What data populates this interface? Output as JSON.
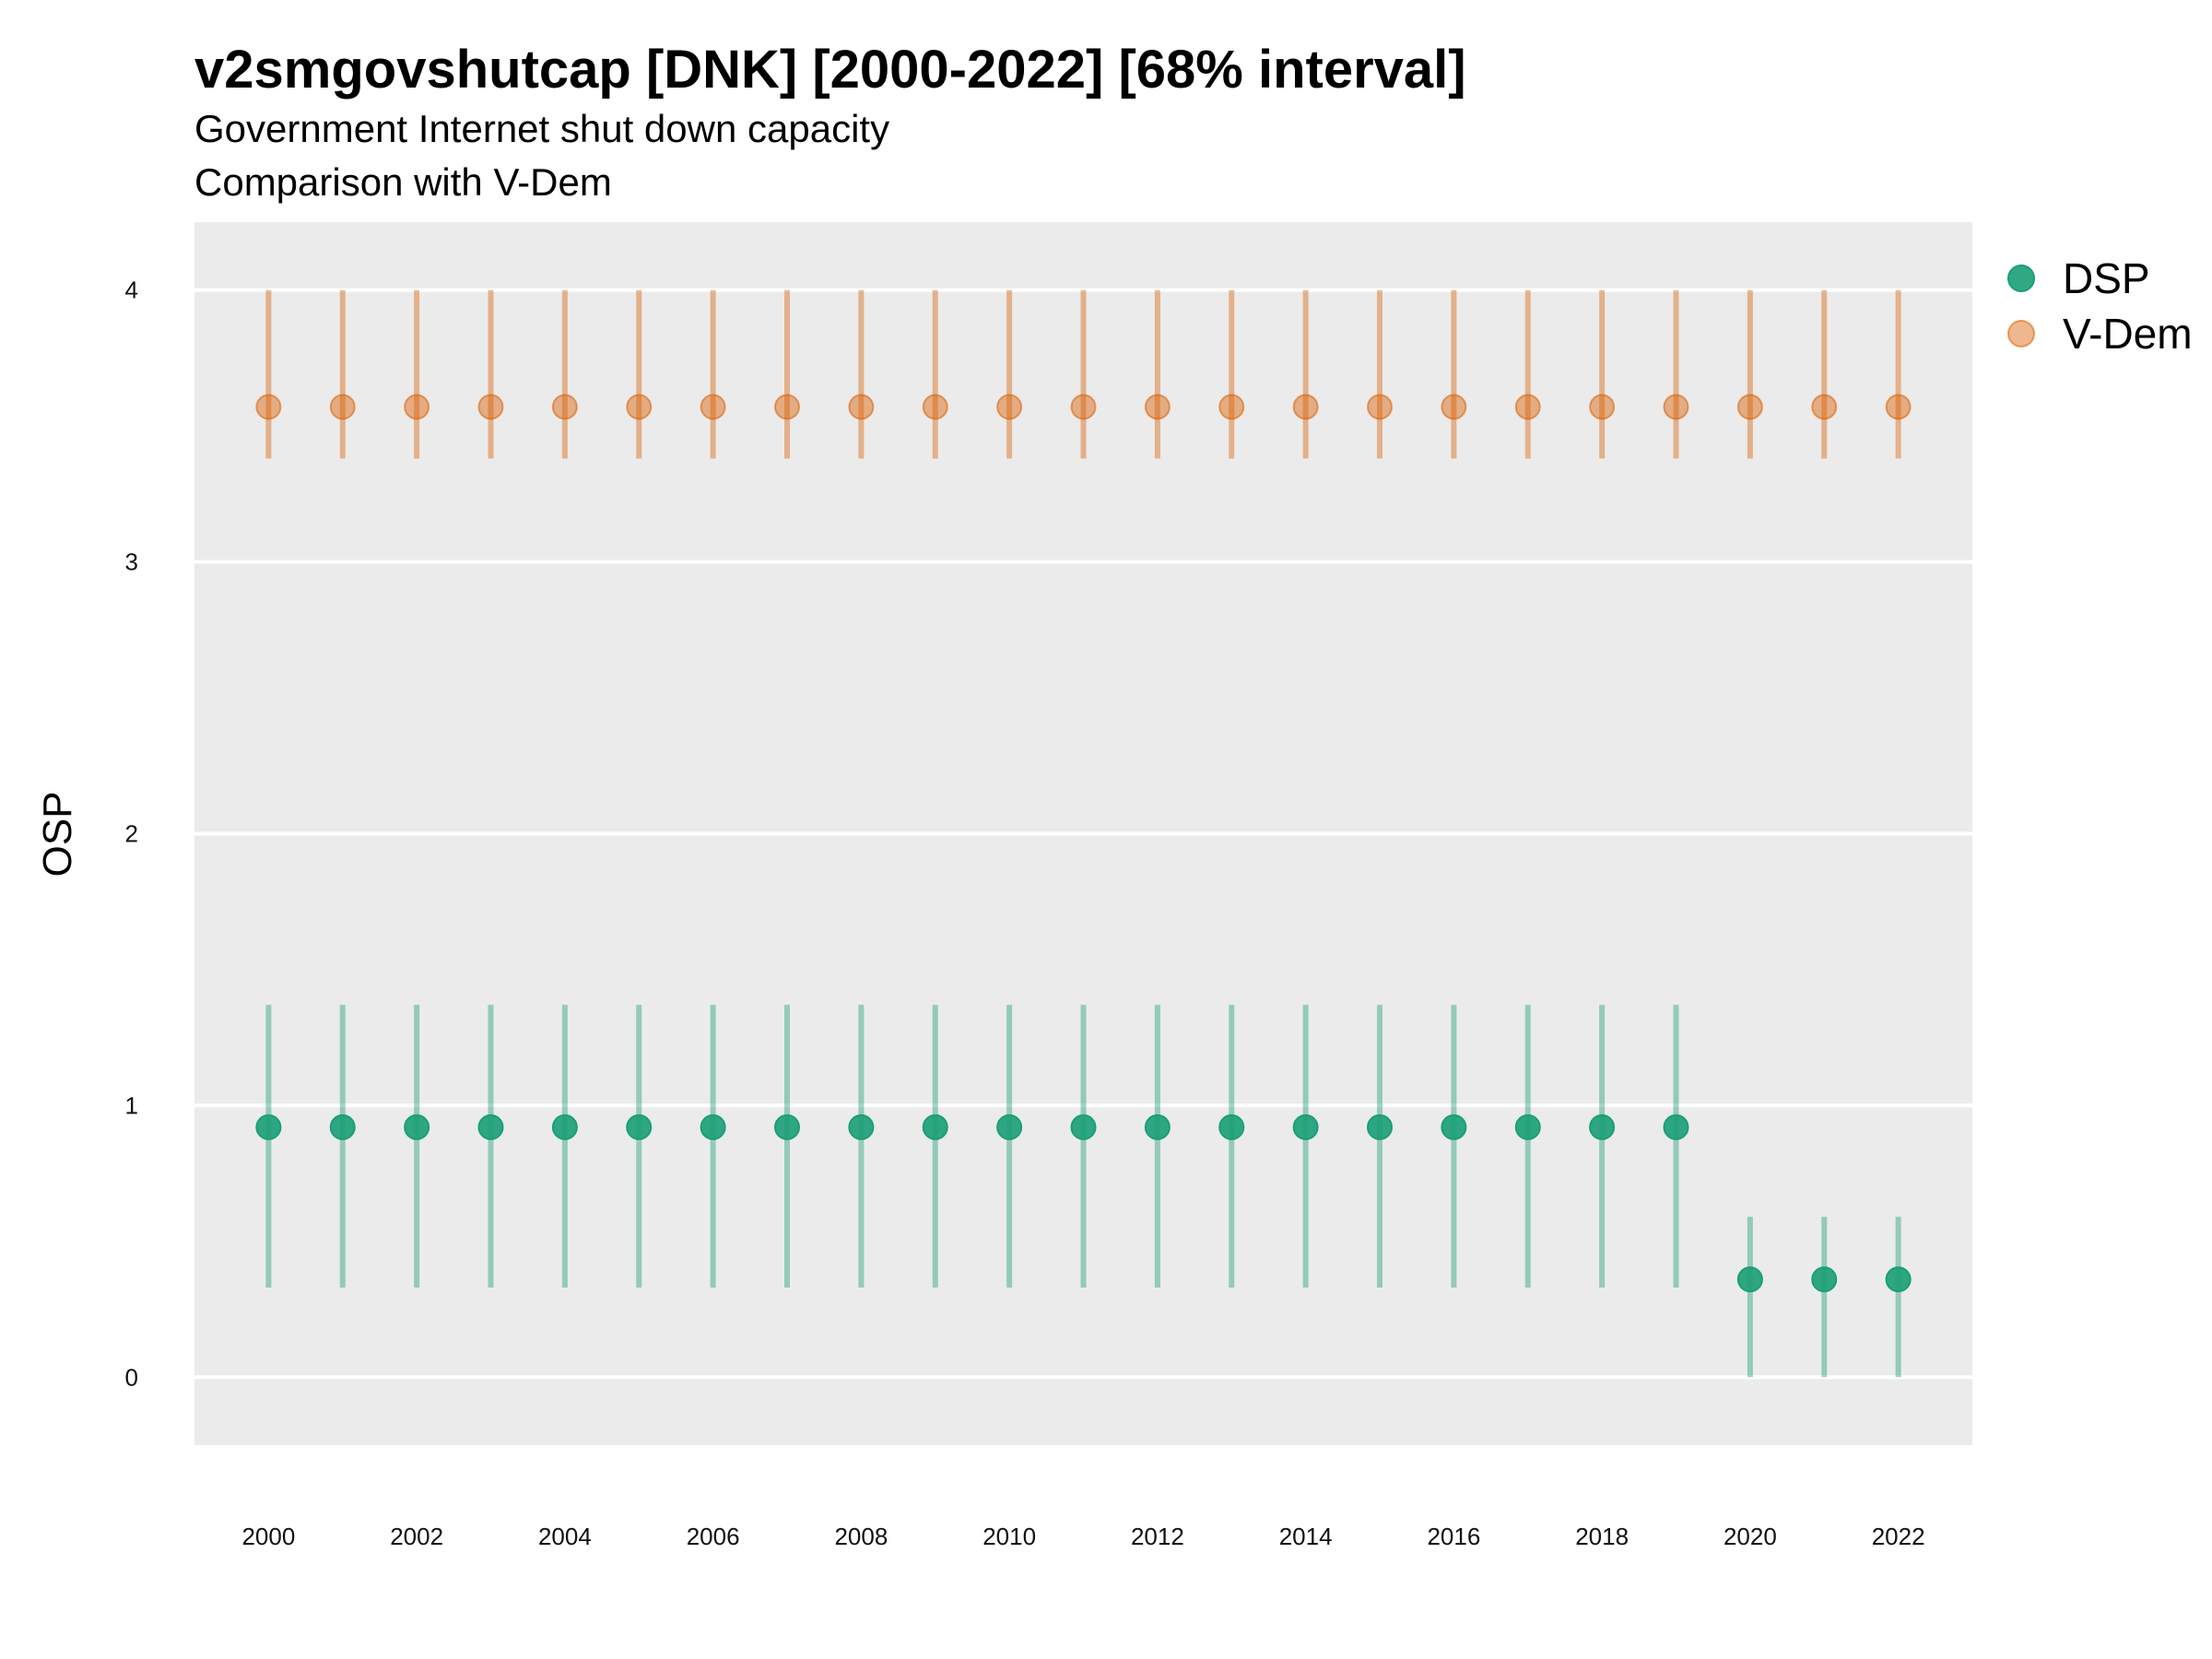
{
  "chart_data": {
    "type": "scatter",
    "title": "v2smgovshutcap [DNK] [2000-2022] [68% interval]",
    "subtitle_lines": [
      "Government Internet shut down capacity",
      "Comparison with V-Dem"
    ],
    "xlabel": "",
    "ylabel": "OSP",
    "xlim": [
      1999,
      2023
    ],
    "ylim": [
      -0.25,
      4.25
    ],
    "x_ticks": [
      2000,
      2002,
      2004,
      2006,
      2008,
      2010,
      2012,
      2014,
      2016,
      2018,
      2020,
      2022
    ],
    "y_ticks": [
      0,
      1,
      2,
      3,
      4
    ],
    "grid": true,
    "legend_position": "right",
    "x": [
      2000,
      2001,
      2002,
      2003,
      2004,
      2005,
      2006,
      2007,
      2008,
      2009,
      2010,
      2011,
      2012,
      2013,
      2014,
      2015,
      2016,
      2017,
      2018,
      2019,
      2020,
      2021,
      2022
    ],
    "series": [
      {
        "name": "DSP",
        "color": "#1b9e77",
        "values": [
          0.92,
          0.92,
          0.92,
          0.92,
          0.92,
          0.92,
          0.92,
          0.92,
          0.92,
          0.92,
          0.92,
          0.92,
          0.92,
          0.92,
          0.92,
          0.92,
          0.92,
          0.92,
          0.92,
          0.92,
          0.36,
          0.36,
          0.36
        ],
        "lower": [
          0.33,
          0.33,
          0.33,
          0.33,
          0.33,
          0.33,
          0.33,
          0.33,
          0.33,
          0.33,
          0.33,
          0.33,
          0.33,
          0.33,
          0.33,
          0.33,
          0.33,
          0.33,
          0.33,
          0.33,
          0.0,
          0.0,
          0.0
        ],
        "upper": [
          1.37,
          1.37,
          1.37,
          1.37,
          1.37,
          1.37,
          1.37,
          1.37,
          1.37,
          1.37,
          1.37,
          1.37,
          1.37,
          1.37,
          1.37,
          1.37,
          1.37,
          1.37,
          1.37,
          1.37,
          0.59,
          0.59,
          0.59
        ]
      },
      {
        "name": "V-Dem",
        "color": "#d95f02",
        "values": [
          3.57,
          3.57,
          3.57,
          3.57,
          3.57,
          3.57,
          3.57,
          3.57,
          3.57,
          3.57,
          3.57,
          3.57,
          3.57,
          3.57,
          3.57,
          3.57,
          3.57,
          3.57,
          3.57,
          3.57,
          3.57,
          3.57,
          3.57
        ],
        "lower": [
          3.38,
          3.38,
          3.38,
          3.38,
          3.38,
          3.38,
          3.38,
          3.38,
          3.38,
          3.38,
          3.38,
          3.38,
          3.38,
          3.38,
          3.38,
          3.38,
          3.38,
          3.38,
          3.38,
          3.38,
          3.38,
          3.38,
          3.38
        ],
        "upper": [
          4.0,
          4.0,
          4.0,
          4.0,
          4.0,
          4.0,
          4.0,
          4.0,
          4.0,
          4.0,
          4.0,
          4.0,
          4.0,
          4.0,
          4.0,
          4.0,
          4.0,
          4.0,
          4.0,
          4.0,
          4.0,
          4.0,
          4.0
        ]
      }
    ]
  }
}
